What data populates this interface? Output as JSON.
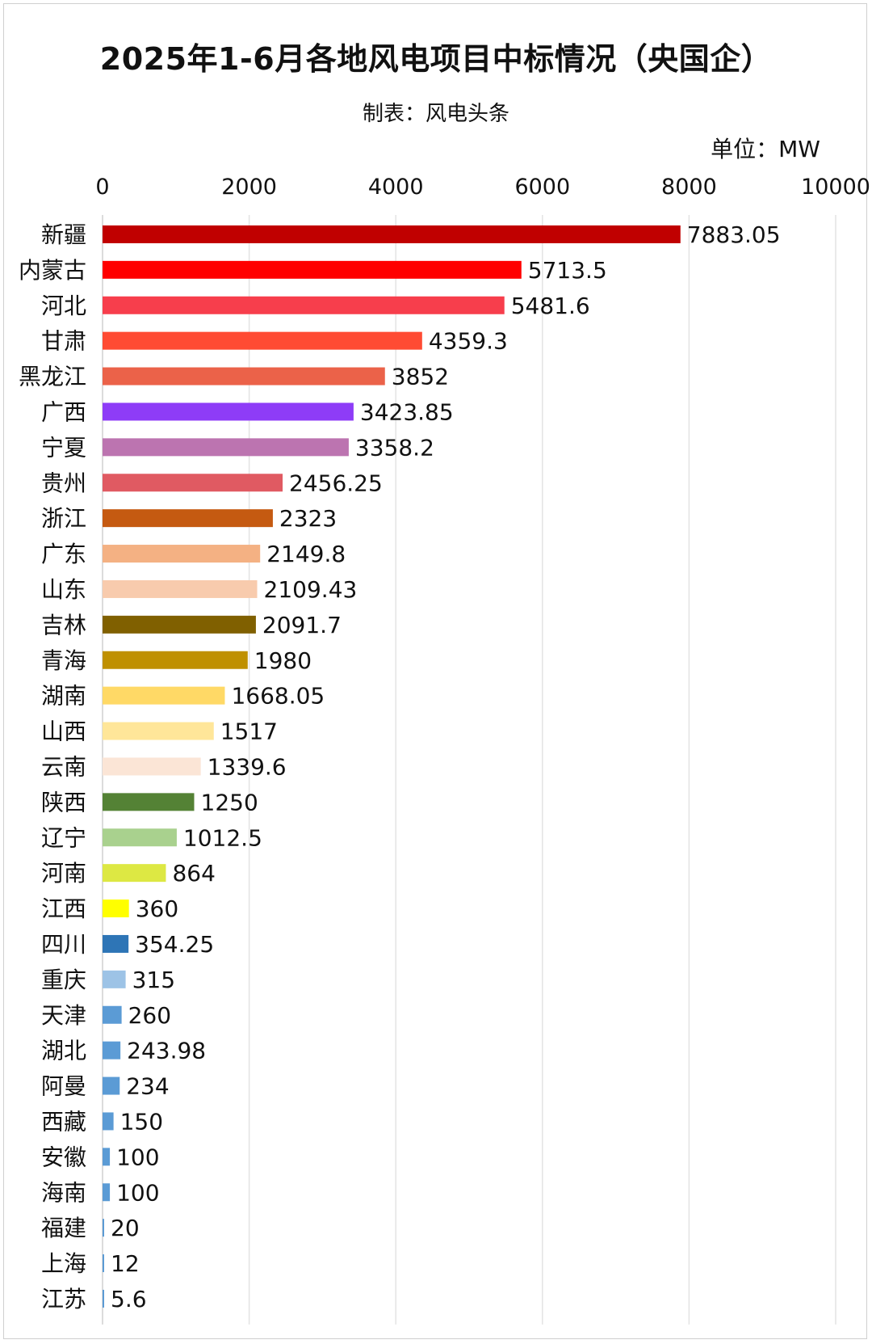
{
  "chart_data": {
    "type": "bar",
    "orientation": "horizontal",
    "title": "2025年1-6月各地风电项目中标情况（央国企）",
    "subtitle": "制表：风电头条",
    "unit_label": "单位：MW",
    "xlim": [
      0,
      10000
    ],
    "xticks": [
      "0",
      "2000",
      "4000",
      "6000",
      "8000",
      "10000"
    ],
    "axis_position": "top",
    "grid": true,
    "categories": [
      "新疆",
      "内蒙古",
      "河北",
      "甘肃",
      "黑龙江",
      "广西",
      "宁夏",
      "贵州",
      "浙江",
      "广东",
      "山东",
      "吉林",
      "青海",
      "湖南",
      "山西",
      "云南",
      "陕西",
      "辽宁",
      "河南",
      "江西",
      "四川",
      "重庆",
      "天津",
      "湖北",
      "阿曼",
      "西藏",
      "安徽",
      "海南",
      "福建",
      "上海",
      "江苏"
    ],
    "values": [
      7883.05,
      5713.5,
      5481.6,
      4359.3,
      3852,
      3423.85,
      3358.2,
      2456.25,
      2323,
      2149.8,
      2109.43,
      2091.7,
      1980,
      1668.05,
      1517,
      1339.6,
      1250,
      1012.5,
      864,
      360,
      354.25,
      315,
      260,
      243.98,
      234,
      150,
      100,
      100,
      20,
      12,
      5.6
    ],
    "value_labels": [
      "7883.05",
      "5713.5",
      "5481.6",
      "4359.3",
      "3852",
      "3423.85",
      "3358.2",
      "2456.25",
      "2323",
      "2149.8",
      "2109.43",
      "2091.7",
      "1980",
      "1668.05",
      "1517",
      "1339.6",
      "1250",
      "1012.5",
      "864",
      "360",
      "354.25",
      "315",
      "260",
      "243.98",
      "234",
      "150",
      "100",
      "100",
      "20",
      "12",
      "5.6"
    ],
    "colors": [
      "#C00000",
      "#FF0000",
      "#F73E4C",
      "#FF4B33",
      "#EB6249",
      "#8E3CF7",
      "#BC74B0",
      "#E05A62",
      "#C55A11",
      "#F4B183",
      "#F8CBAD",
      "#806000",
      "#BF9000",
      "#FFD966",
      "#FFE699",
      "#FBE5D6",
      "#548235",
      "#A9D18E",
      "#DDE843",
      "#FFFF00",
      "#2E75B6",
      "#9DC3E6",
      "#5B9BD5",
      "#5B9BD5",
      "#5B9BD5",
      "#5B9BD5",
      "#5B9BD5",
      "#5B9BD5",
      "#5B9BD5",
      "#5B9BD5",
      "#5B9BD5"
    ]
  }
}
